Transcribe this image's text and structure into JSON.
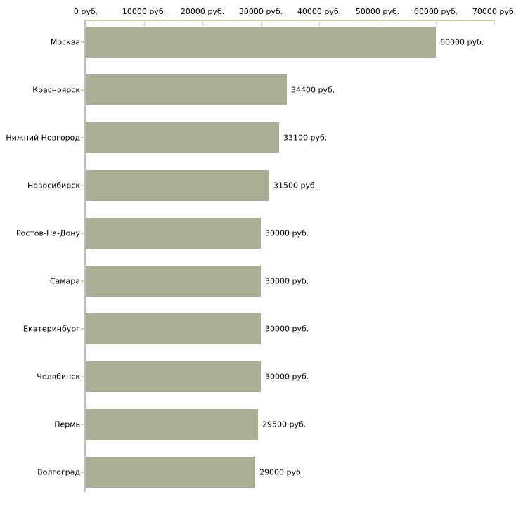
{
  "chart_data": {
    "type": "bar",
    "orientation": "horizontal",
    "title": "",
    "xlabel": "",
    "ylabel": "",
    "unit": "руб.",
    "categories": [
      "Москва",
      "Красноярск",
      "Нижний Новгород",
      "Новосибирск",
      "Ростов-На-Дону",
      "Самара",
      "Екатеринбург",
      "Челябинск",
      "Пермь",
      "Волгоград"
    ],
    "values": [
      60000,
      34400,
      33100,
      31500,
      30000,
      30000,
      30000,
      30000,
      29500,
      29000
    ],
    "value_labels": [
      "60000 руб.",
      "34400 руб.",
      "33100 руб.",
      "31500 руб.",
      "30000 руб.",
      "30000 руб.",
      "30000 руб.",
      "30000 руб.",
      "29500 руб.",
      "29000 руб."
    ],
    "x_ticks": [
      0,
      10000,
      20000,
      30000,
      40000,
      50000,
      60000,
      70000
    ],
    "x_tick_labels": [
      "0 руб.",
      "10000 руб.",
      "20000 руб.",
      "30000 руб.",
      "40000 руб.",
      "50000 руб.",
      "60000 руб.",
      "70000 руб."
    ],
    "xlim": [
      0,
      70000
    ],
    "grid": false,
    "legend": false,
    "colors": {
      "bar": "#a9ae94",
      "axis_line": "#d2cfaa",
      "axis_tick": "#ddd9b4",
      "y_axis_line": "#bdbdbd",
      "text": "#000000",
      "background": "#ffffff"
    }
  }
}
